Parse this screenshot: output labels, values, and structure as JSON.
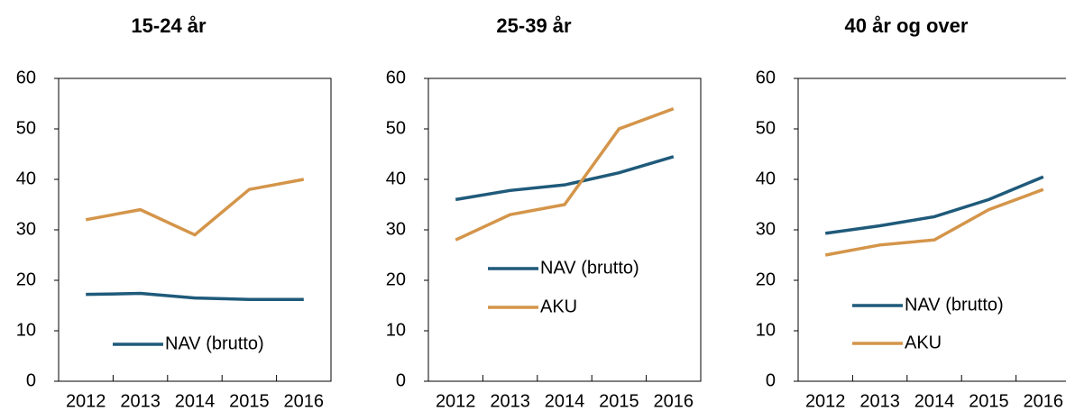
{
  "chart_data": [
    {
      "type": "line",
      "title": "15-24 år",
      "categories": [
        "2012",
        "2013",
        "2014",
        "2015",
        "2016"
      ],
      "ylim": [
        0,
        60
      ],
      "yticks": [
        0,
        10,
        20,
        30,
        40,
        50,
        60
      ],
      "series": [
        {
          "name": "NAV (brutto)",
          "color": "#1f5a7a",
          "values": [
            17.2,
            17.4,
            16.5,
            16.2,
            16.2
          ]
        },
        {
          "color": "#d4954a",
          "values": [
            32,
            34,
            29,
            38,
            40
          ]
        }
      ]
    },
    {
      "type": "line",
      "title": "25-39 år",
      "categories": [
        "2012",
        "2013",
        "2014",
        "2015",
        "2016"
      ],
      "ylim": [
        0,
        60
      ],
      "yticks": [
        0,
        10,
        20,
        30,
        40,
        50,
        60
      ],
      "series": [
        {
          "name": "NAV (brutto)",
          "color": "#1f5a7a",
          "values": [
            36,
            37.8,
            38.9,
            41.3,
            44.5
          ]
        },
        {
          "name": "AKU",
          "color": "#d4954a",
          "values": [
            28,
            33,
            35,
            50,
            54
          ]
        }
      ]
    },
    {
      "type": "line",
      "title": "40 år og over",
      "categories": [
        "2012",
        "2013",
        "2014",
        "2015",
        "2016"
      ],
      "ylim": [
        0,
        60
      ],
      "yticks": [
        0,
        10,
        20,
        30,
        40,
        50,
        60
      ],
      "series": [
        {
          "name": "NAV (brutto)",
          "color": "#1f5a7a",
          "values": [
            29.3,
            30.8,
            32.6,
            36,
            40.5
          ]
        },
        {
          "name": "AKU",
          "color": "#d4954a",
          "values": [
            25,
            27,
            28,
            34,
            38
          ]
        }
      ]
    }
  ]
}
